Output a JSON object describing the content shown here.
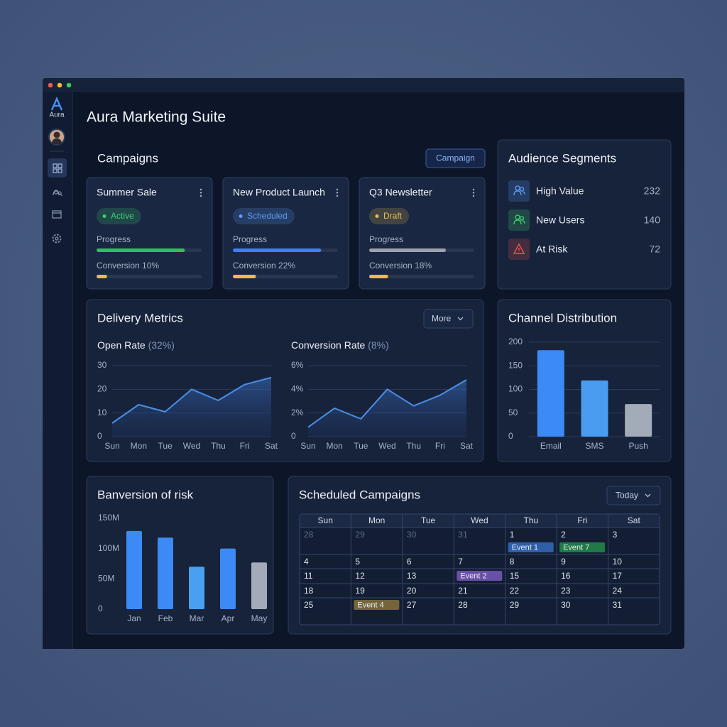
{
  "app": {
    "logo": "Aura",
    "title": "Aura Marketing Suite"
  },
  "campaigns": {
    "heading": "Campaigns",
    "button": "Campaign",
    "progress_label": "Progress",
    "items": [
      {
        "name": "Summer Sale",
        "status": "Active",
        "status_color": "#3ecf6e",
        "progress": 84,
        "progress_color": "#2fbf5f",
        "conversion": 10,
        "conversion_label": "Conversion 10%"
      },
      {
        "name": "New Product Launch",
        "status": "Scheduled",
        "status_color": "#5b9cf5",
        "progress": 84,
        "progress_color": "#3b82f6",
        "conversion": 22,
        "conversion_label": "Conversion 22%"
      },
      {
        "name": "Q3 Newsletter",
        "status": "Draft",
        "status_color": "#e8b84a",
        "progress": 73,
        "progress_color": "#9ca3af",
        "conversion": 18,
        "conversion_label": "Conversion 18%"
      }
    ],
    "conversion_color": "#f5b942"
  },
  "audience": {
    "heading": "Audience Segments",
    "items": [
      {
        "name": "High Value",
        "count": 232,
        "color": "#5b9cf5"
      },
      {
        "name": "New Users",
        "count": 140,
        "color": "#3ecf6e"
      },
      {
        "name": "At Risk",
        "count": 72,
        "color": "#ef5350"
      }
    ]
  },
  "delivery": {
    "heading": "Delivery Metrics",
    "button": "More"
  },
  "scheduled": {
    "heading": "Scheduled Campaigns",
    "button": "Today",
    "weekdays": [
      "Sun",
      "Mon",
      "Tue",
      "Wed",
      "Thu",
      "Fri",
      "Sat"
    ],
    "weeks": [
      [
        {
          "day": "28",
          "outside": true
        },
        {
          "day": "29",
          "outside": true
        },
        {
          "day": "30",
          "outside": true
        },
        {
          "day": "31",
          "outside": true
        },
        {
          "day": "1",
          "event": "Event 1",
          "event_color": "#2f5fa8"
        },
        {
          "day": "2",
          "event": "Event 7",
          "event_color": "#1f7a46"
        },
        {
          "day": "3"
        }
      ],
      [
        {
          "day": "4"
        },
        {
          "day": "5"
        },
        {
          "day": "6"
        },
        {
          "day": "7"
        },
        {
          "day": "8"
        },
        {
          "day": "9"
        },
        {
          "day": "10"
        }
      ],
      [
        {
          "day": "11"
        },
        {
          "day": "12"
        },
        {
          "day": "13"
        },
        {
          "event": "Event 2",
          "event_color": "#6a4fa6"
        },
        {
          "day": "15"
        },
        {
          "day": "16"
        },
        {
          "day": "17"
        }
      ],
      [
        {
          "day": "18"
        },
        {
          "day": "19"
        },
        {
          "day": "20"
        },
        {
          "day": "21"
        },
        {
          "day": "22"
        },
        {
          "day": "23"
        },
        {
          "day": "24"
        }
      ],
      [
        {
          "day": "25"
        },
        {
          "event": "Event 4",
          "event_color": "#736539"
        },
        {
          "day": "27"
        },
        {
          "day": "28"
        },
        {
          "day": "29"
        },
        {
          "day": "30"
        },
        {
          "day": "31"
        }
      ]
    ]
  },
  "chart_data": [
    {
      "type": "line",
      "title": "Open Rate",
      "subtitle": "(32%)",
      "categories": [
        "Sun",
        "Mon",
        "Tue",
        "Wed",
        "Thu",
        "Fri",
        "Sat"
      ],
      "values": [
        5.7,
        13.5,
        10.5,
        20,
        15.3,
        22,
        25
      ],
      "color": "#4a8fe8",
      "ylim": [
        0,
        30
      ],
      "yticks": [
        0,
        10,
        20,
        30
      ],
      "grid": true
    },
    {
      "type": "line",
      "title": "Conversion Rate",
      "subtitle": "(8%)",
      "categories": [
        "Sun",
        "Mon",
        "Tue",
        "Wed",
        "Thu",
        "Fri",
        "Sat"
      ],
      "values": [
        0.8,
        2.4,
        1.5,
        4.0,
        2.6,
        3.5,
        4.8
      ],
      "color": "#4a8fe8",
      "ylim": [
        0,
        6
      ],
      "yticks": [
        0,
        {
          "value": 2,
          "label": "2%"
        },
        {
          "value": 4,
          "label": "4%"
        },
        {
          "value": 6,
          "label": "6%"
        }
      ],
      "grid": true
    },
    {
      "type": "bar",
      "title": "Channel Distribution",
      "categories": [
        "Email",
        "SMS",
        "Push"
      ],
      "values": [
        183,
        119,
        69
      ],
      "colors": [
        "#3b8af5",
        "#4a9cf0",
        "#a3abb8"
      ],
      "ylim": [
        0,
        200
      ],
      "yticks": [
        0,
        50,
        100,
        150,
        200
      ],
      "grid": true
    },
    {
      "type": "bar",
      "title": "Banversion of risk",
      "categories": [
        "Jan",
        "Feb",
        "Mar",
        "Apr",
        "May"
      ],
      "values": [
        129,
        118,
        70,
        100,
        77
      ],
      "colors": [
        "#3b8af5",
        "#3b8af5",
        "#4aa0f0",
        "#3b8af5",
        "#a3abb8"
      ],
      "ylim": [
        0,
        150
      ],
      "yticks": [
        0,
        {
          "value": 50,
          "label": "50M"
        },
        {
          "value": 100,
          "label": "100M"
        },
        {
          "value": 150,
          "label": "150M"
        }
      ],
      "grid": false
    }
  ]
}
